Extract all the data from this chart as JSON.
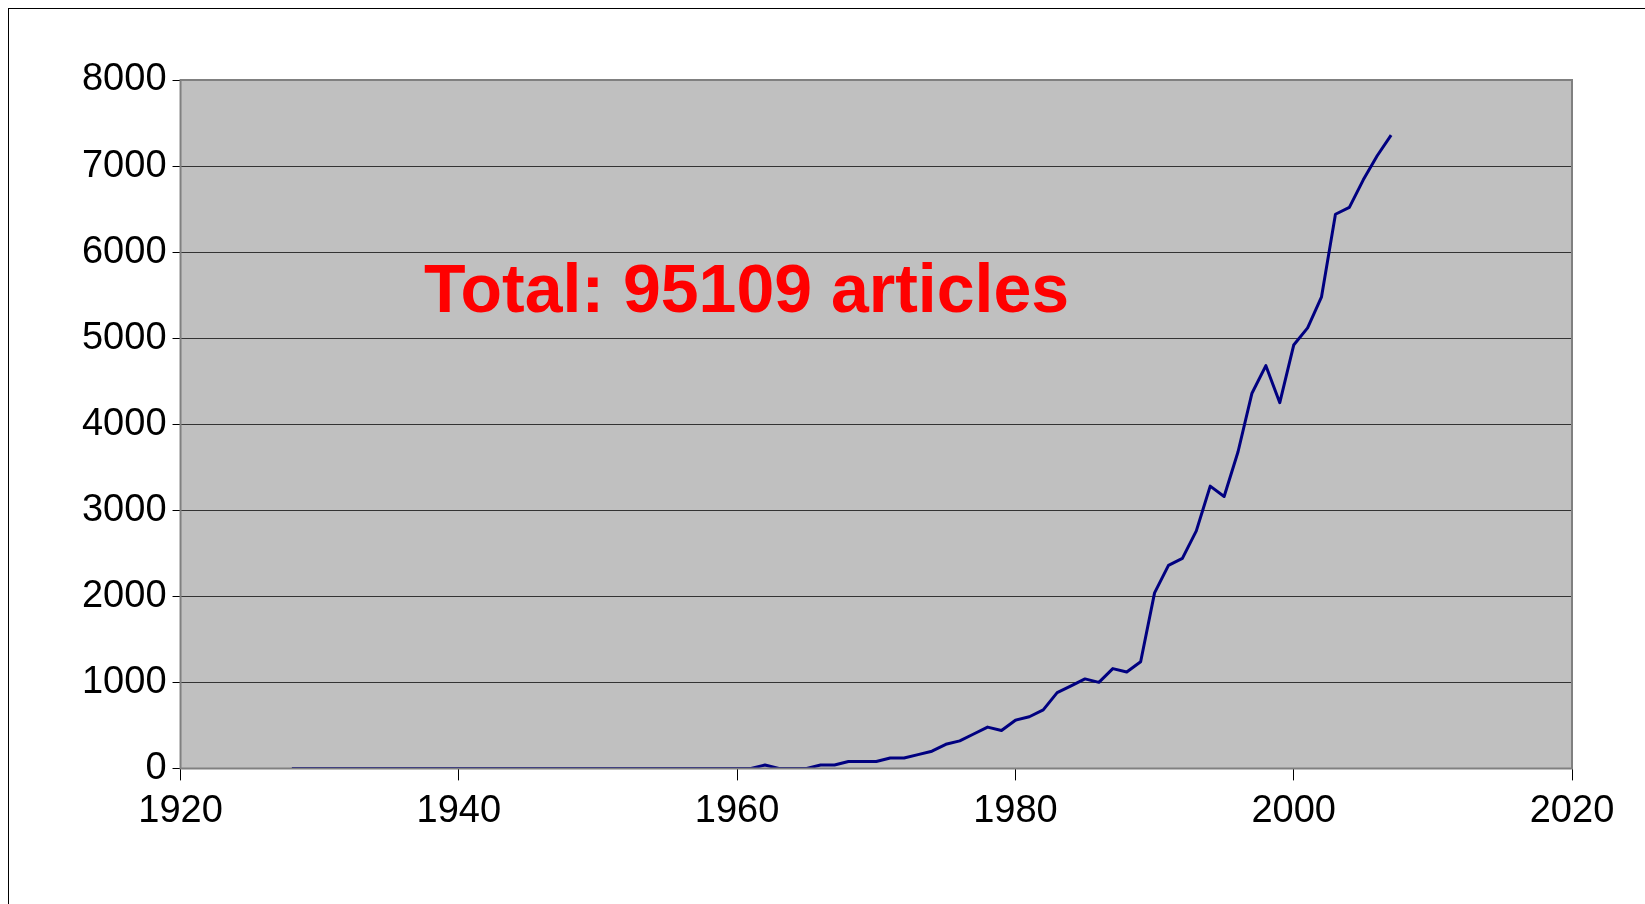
{
  "chart_data": {
    "type": "line",
    "x": [
      1928,
      1961,
      1962,
      1963,
      1964,
      1965,
      1966,
      1967,
      1968,
      1969,
      1970,
      1971,
      1972,
      1973,
      1974,
      1975,
      1976,
      1977,
      1978,
      1979,
      1980,
      1981,
      1982,
      1983,
      1984,
      1985,
      1986,
      1987,
      1988,
      1989,
      1990,
      1991,
      1992,
      1993,
      1994,
      1995,
      1996,
      1997,
      1998,
      1999,
      2000,
      2001,
      2002,
      2003,
      2004,
      2005,
      2006,
      2007
    ],
    "series": [
      {
        "color": "#000080",
        "values": [
          0,
          0,
          40,
          0,
          0,
          0,
          40,
          40,
          80,
          80,
          80,
          120,
          120,
          160,
          200,
          280,
          320,
          400,
          480,
          440,
          560,
          600,
          680,
          880,
          960,
          1040,
          1000,
          1160,
          1120,
          1240,
          2040,
          2360,
          2440,
          2760,
          3280,
          3160,
          3680,
          4360,
          4680,
          4250,
          4920,
          5120,
          5480,
          6440,
          6520,
          6840,
          7120,
          7360
        ]
      }
    ],
    "xlim": [
      1920,
      2020
    ],
    "xticks": [
      1920,
      1940,
      1960,
      1980,
      2000,
      2020
    ],
    "ylim": [
      0,
      8000
    ],
    "yticks": [
      0,
      1000,
      2000,
      3000,
      4000,
      5000,
      6000,
      7000,
      8000
    ],
    "grid": "y",
    "legend": false,
    "marker": "none",
    "line_style": "solid",
    "annotations": [
      "Total: 95109 articles"
    ]
  }
}
